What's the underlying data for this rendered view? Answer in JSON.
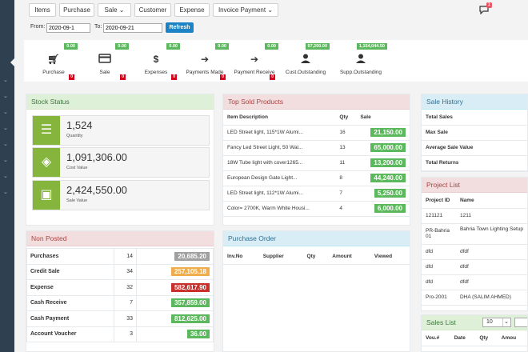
{
  "nav": {
    "buttons": [
      "Items",
      "Purchase",
      "Sale",
      "Customer",
      "Expense",
      "Invoice Payment"
    ],
    "dropdown_caret": "⌄",
    "notification_count": "1"
  },
  "filters": {
    "from_label": "From:",
    "from_value": "2020-09-1",
    "to_label": "To:",
    "to_value": "2020-09-21",
    "refresh_label": "Refresh"
  },
  "tiles": [
    {
      "label": "Purchase",
      "value": "0.00",
      "count": "0",
      "icon": "cart-icon"
    },
    {
      "label": "Sale",
      "value": "0.00",
      "count": "0",
      "icon": "credit-card-icon"
    },
    {
      "label": "Expenses",
      "value": "0.00",
      "count": "0",
      "icon": "dollar-icon"
    },
    {
      "label": "Payments Made",
      "value": "0.00",
      "count": "0",
      "icon": "sign-out-icon"
    },
    {
      "label": "Payment Receive",
      "value": "0.00",
      "count": "0",
      "icon": "sign-in-icon"
    },
    {
      "label": "Cust.Outstanding",
      "value": "97,200.00",
      "count": "",
      "icon": "user-icon"
    },
    {
      "label": "Supp.Outstanding",
      "value": "1,154,044.50",
      "count": "",
      "icon": "user-icon"
    }
  ],
  "stock_status": {
    "title": "Stock Status",
    "items": [
      {
        "value": "1,524",
        "label": "Quantity",
        "icon": "database-icon"
      },
      {
        "value": "1,091,306.00",
        "label": "Cost Value",
        "icon": "money-icon"
      },
      {
        "value": "2,424,550.00",
        "label": "Sale Value",
        "icon": "wallet-icon"
      }
    ]
  },
  "top_sold": {
    "title": "Top Sold Products",
    "headers": [
      "Item Description",
      "Qty",
      "Sale"
    ],
    "rows": [
      {
        "item": "LED Street light, 115*1W Alumi...",
        "qty": "16",
        "sale": "21,150.00"
      },
      {
        "item": "Fancy Led Street Light, 50 Wal...",
        "qty": "13",
        "sale": "65,000.00"
      },
      {
        "item": "18W Tube light with cover1265...",
        "qty": "11",
        "sale": "13,200.00"
      },
      {
        "item": "European Design Gate Light...",
        "qty": "8",
        "sale": "44,240.00"
      },
      {
        "item": "LED Street light, 112*1W Alumi...",
        "qty": "7",
        "sale": "5,250.00"
      },
      {
        "item": "Color= 2700K, Warm White Housi...",
        "qty": "4",
        "sale": "6,000.00"
      }
    ]
  },
  "sale_history": {
    "title": "Sale History",
    "rows": [
      "Total Sales",
      "Max Sale",
      "Average Sale Value",
      "Total Returns"
    ]
  },
  "project_list": {
    "title": "Project List",
    "headers": [
      "Project ID",
      "Name"
    ],
    "rows": [
      {
        "id": "121121",
        "name": "1211"
      },
      {
        "id": "PR-Bahria01",
        "name": "Bahria Town Lighting Setup"
      },
      {
        "id": "dfd",
        "name": "dfdf"
      },
      {
        "id": "dfd",
        "name": "dfdf"
      },
      {
        "id": "dfd",
        "name": "dfdf"
      },
      {
        "id": "Pro-2001",
        "name": "DHA (SALIM AHMED)"
      }
    ]
  },
  "sales_list": {
    "title": "Sales List",
    "page_size": "10",
    "headers": [
      "Vou.#",
      "Date",
      "Qty",
      "Amou"
    ]
  },
  "non_posted": {
    "title": "Non Posted",
    "rows": [
      {
        "label": "Purchases",
        "count": "14",
        "amount": "20,685.20",
        "color": "#a0a0a0"
      },
      {
        "label": "Credit Sale",
        "count": "34",
        "amount": "257,105.18",
        "color": "#f0ad4e"
      },
      {
        "label": "Expense",
        "count": "32",
        "amount": "582,617.90",
        "color": "#c9302c"
      },
      {
        "label": "Cash Receive",
        "count": "7",
        "amount": "357,859.00",
        "color": "#5cb85c"
      },
      {
        "label": "Cash Payment",
        "count": "33",
        "amount": "812,625.00",
        "color": "#5cb85c"
      },
      {
        "label": "Account Voucher",
        "count": "3",
        "amount": "36.00",
        "color": "#5cb85c"
      }
    ]
  },
  "purchase_order": {
    "title": "Purchase Order",
    "headers": [
      "Inv.No",
      "Supplier",
      "Qty",
      "Amount",
      "Viewed"
    ]
  },
  "colors": {
    "sale_badge": "#5cb85c",
    "tile_value": "#5cb85c",
    "tile_count": "#d9001b",
    "stock_icon": "#86b53d",
    "refresh": "#1c84c6",
    "sidebar": "#2f4050"
  }
}
